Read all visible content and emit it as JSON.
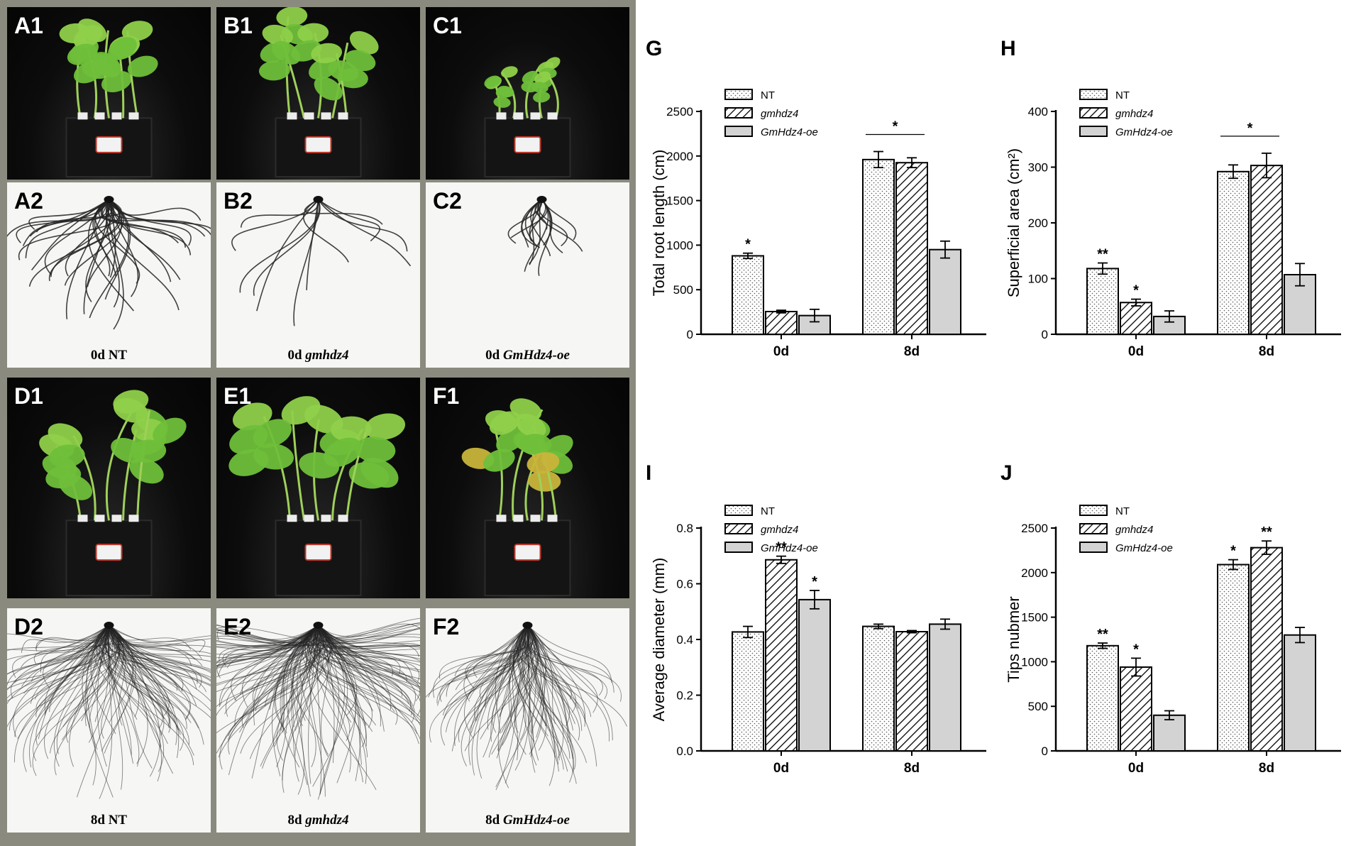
{
  "colors": {
    "dark_bg": "#0b0b0b",
    "light_bg": "#f6f6f4",
    "leaf": "#6fbf3a",
    "root": "#222222",
    "frame": "#8a8a7e",
    "bar_grey": "#d3d3d3"
  },
  "photos": [
    {
      "label": "A1",
      "kind": "plant",
      "size": 1.0,
      "yellow": false
    },
    {
      "label": "B1",
      "kind": "plant",
      "size": 1.0,
      "yellow": false
    },
    {
      "label": "C1",
      "kind": "plant",
      "size": 0.55,
      "yellow": false
    },
    {
      "label": "A2",
      "kind": "root",
      "density": 40,
      "spread": 1.0,
      "caption_day": "0d",
      "caption_geno": "NT"
    },
    {
      "label": "B2",
      "kind": "root",
      "density": 12,
      "spread": 1.0,
      "caption_day": "0d",
      "caption_geno": "gmhdz4"
    },
    {
      "label": "C2",
      "kind": "root",
      "density": 18,
      "spread": 0.6,
      "caption_day": "0d",
      "caption_geno": "GmHdz4-oe"
    },
    {
      "label": "D1",
      "kind": "plant",
      "size": 1.15,
      "yellow": false
    },
    {
      "label": "E1",
      "kind": "plant",
      "size": 1.3,
      "yellow": false
    },
    {
      "label": "F1",
      "kind": "plant",
      "size": 1.05,
      "yellow": true
    },
    {
      "label": "D2",
      "kind": "root",
      "density": 140,
      "spread": 1.0,
      "caption_day": "8d",
      "caption_geno": "NT"
    },
    {
      "label": "E2",
      "kind": "root",
      "density": 180,
      "spread": 1.1,
      "caption_day": "8d",
      "caption_geno": "gmhdz4"
    },
    {
      "label": "F2",
      "kind": "root",
      "density": 110,
      "spread": 0.8,
      "caption_day": "8d",
      "caption_geno": "GmHdz4-oe"
    }
  ],
  "chart_data": [
    {
      "letter": "G",
      "type": "bar",
      "ylabel": "Total root length (cm)",
      "ylim": [
        0,
        2500
      ],
      "yticks": [
        0,
        500,
        1000,
        1500,
        2000,
        2500
      ],
      "categories": [
        "0d",
        "8d"
      ],
      "legend": [
        "NT",
        "gmhdz4",
        "GmHdz4-oe"
      ],
      "series": [
        {
          "name": "NT",
          "values": [
            880,
            1960
          ],
          "errors": [
            30,
            90
          ]
        },
        {
          "name": "gmhdz4",
          "values": [
            255,
            1925
          ],
          "errors": [
            15,
            55
          ]
        },
        {
          "name": "GmHdz4-oe",
          "values": [
            210,
            950
          ],
          "errors": [
            70,
            95
          ]
        }
      ],
      "annotations": [
        {
          "category": 0,
          "series": 0,
          "text": "*"
        },
        {
          "category": 1,
          "bracket": true,
          "text": "*"
        }
      ]
    },
    {
      "letter": "H",
      "type": "bar",
      "ylabel": "Superficial area (cm²)",
      "ylim": [
        0,
        400
      ],
      "yticks": [
        0,
        100,
        200,
        300,
        400
      ],
      "categories": [
        "0d",
        "8d"
      ],
      "legend": [
        "NT",
        "gmhdz4",
        "GmHdz4-oe"
      ],
      "series": [
        {
          "name": "NT",
          "values": [
            118,
            292
          ],
          "errors": [
            10,
            12
          ]
        },
        {
          "name": "gmhdz4",
          "values": [
            57,
            303
          ],
          "errors": [
            6,
            22
          ]
        },
        {
          "name": "GmHdz4-oe",
          "values": [
            32,
            107
          ],
          "errors": [
            10,
            20
          ]
        }
      ],
      "annotations": [
        {
          "category": 0,
          "series": 0,
          "text": "**"
        },
        {
          "category": 0,
          "series": 1,
          "text": "*"
        },
        {
          "category": 1,
          "bracket": true,
          "text": "*"
        }
      ]
    },
    {
      "letter": "I",
      "type": "bar",
      "ylabel": "Average diameter (mm)",
      "ylim": [
        0,
        0.8
      ],
      "yticks": [
        "0.0",
        "0.2",
        "0.4",
        "0.6",
        "0.8"
      ],
      "categories": [
        "0d",
        "8d"
      ],
      "legend": [
        "NT",
        "gmhdz4",
        "GmHdz4-oe"
      ],
      "series": [
        {
          "name": "NT",
          "values": [
            0.427,
            0.447
          ],
          "errors": [
            0.02,
            0.008
          ]
        },
        {
          "name": "gmhdz4",
          "values": [
            0.686,
            0.428
          ],
          "errors": [
            0.013,
            0.004
          ]
        },
        {
          "name": "GmHdz4-oe",
          "values": [
            0.543,
            0.455
          ],
          "errors": [
            0.033,
            0.018
          ]
        }
      ],
      "annotations": [
        {
          "category": 0,
          "series": 1,
          "text": "**"
        },
        {
          "category": 0,
          "series": 2,
          "text": "*"
        }
      ]
    },
    {
      "letter": "J",
      "type": "bar",
      "ylabel": "Tips nubmer",
      "ylim": [
        0,
        2500
      ],
      "yticks": [
        0,
        500,
        1000,
        1500,
        2000,
        2500
      ],
      "categories": [
        "0d",
        "8d"
      ],
      "legend": [
        "NT",
        "gmhdz4",
        "GmHdz4-oe"
      ],
      "series": [
        {
          "name": "NT",
          "values": [
            1180,
            2090
          ],
          "errors": [
            30,
            55
          ]
        },
        {
          "name": "gmhdz4",
          "values": [
            940,
            2280
          ],
          "errors": [
            100,
            75
          ]
        },
        {
          "name": "GmHdz4-oe",
          "values": [
            400,
            1300
          ],
          "errors": [
            50,
            85
          ]
        }
      ],
      "annotations": [
        {
          "category": 0,
          "series": 0,
          "text": "**"
        },
        {
          "category": 0,
          "series": 1,
          "text": "*"
        },
        {
          "category": 1,
          "series": 0,
          "text": "*"
        },
        {
          "category": 1,
          "series": 1,
          "text": "**"
        }
      ]
    }
  ]
}
